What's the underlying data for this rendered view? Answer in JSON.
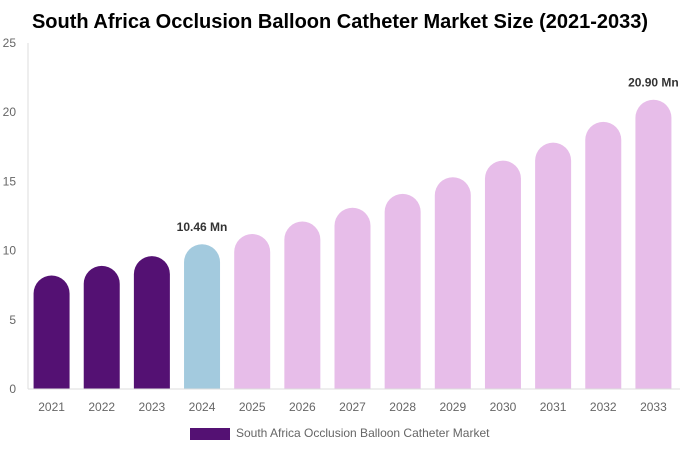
{
  "chart_data": {
    "type": "bar",
    "title": "South Africa Occlusion Balloon Catheter Market Size (2021-2033)",
    "xlabel": "",
    "ylabel": "",
    "ylim": [
      0,
      25
    ],
    "yticks": [
      0,
      5,
      10,
      15,
      20,
      25
    ],
    "grid": false,
    "legend_placement": "bottom",
    "categories": [
      "2021",
      "2022",
      "2023",
      "2024",
      "2025",
      "2026",
      "2027",
      "2028",
      "2029",
      "2030",
      "2031",
      "2032",
      "2033"
    ],
    "series": [
      {
        "name": "South Africa Occlusion Balloon Catheter Market",
        "values": [
          8.2,
          8.9,
          9.6,
          10.46,
          11.2,
          12.1,
          13.1,
          14.1,
          15.3,
          16.5,
          17.8,
          19.3,
          20.9
        ]
      }
    ],
    "annotations": [
      {
        "category": "2024",
        "text": "10.46 Mn"
      },
      {
        "category": "2033",
        "text": "20.90 Mn"
      }
    ],
    "colors": {
      "historical": "#541173",
      "base_year": "#a3cade",
      "forecast": "#e7bde9",
      "axis": "#dddddd",
      "tick_text": "#666666"
    }
  }
}
